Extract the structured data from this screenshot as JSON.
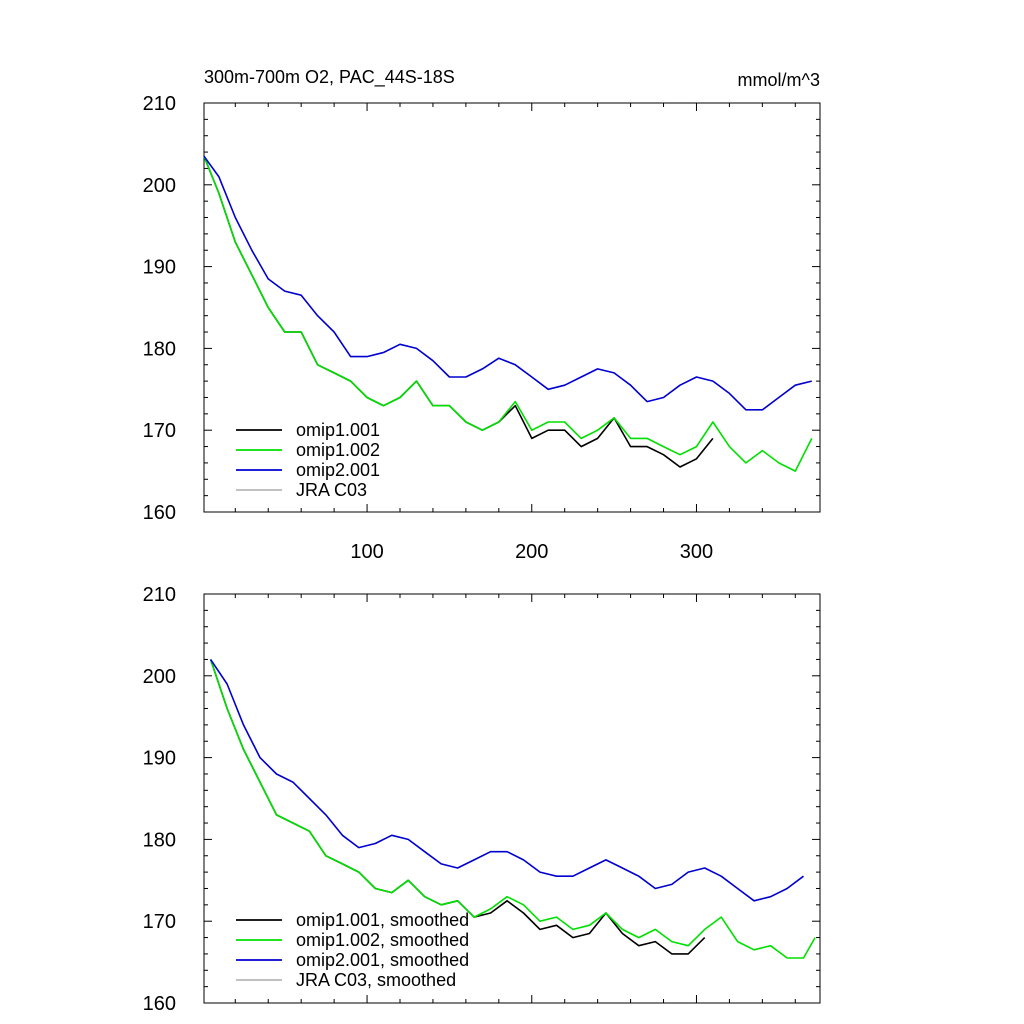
{
  "title_left": "300m-700m O2, PAC_44S-18S",
  "title_right": "mmol/m^3",
  "colors": {
    "omip1_001": "#000000",
    "omip1_002": "#00e000",
    "omip2_001": "#0000d0",
    "jra_c03": "#b8b8b8"
  },
  "chart_data": [
    {
      "type": "line",
      "panel": "raw",
      "title": "300m-700m O2, PAC_44S-18S",
      "units_label": "mmol/m^3",
      "xlim": [
        1,
        375
      ],
      "ylim": [
        160,
        210
      ],
      "xticks": [
        "100",
        "200",
        "300"
      ],
      "xtick_values": [
        100,
        200,
        300
      ],
      "yticks": [
        "160",
        "170",
        "180",
        "190",
        "200",
        "210"
      ],
      "ytick_values": [
        160,
        170,
        180,
        190,
        200,
        210
      ],
      "legend": [
        "omip1.001",
        "omip1.002",
        "omip2.001",
        "JRA C03"
      ],
      "legend_position": "bottom-left",
      "series": [
        {
          "name": "omip1.001",
          "color_key": "omip1_001",
          "x": [
            1,
            10,
            20,
            30,
            40,
            50,
            60,
            70,
            80,
            90,
            100,
            110,
            120,
            130,
            140,
            150,
            160,
            170,
            180,
            190,
            200,
            210,
            220,
            230,
            240,
            250,
            260,
            270,
            280,
            290,
            300,
            310
          ],
          "y": [
            203.5,
            199,
            193,
            189,
            185,
            182,
            182,
            178,
            177,
            176,
            174,
            173,
            174,
            176,
            173,
            173,
            171,
            170,
            171,
            173,
            169,
            170,
            170,
            168,
            169,
            171.5,
            168,
            168,
            167,
            165.5,
            166.5,
            169
          ]
        },
        {
          "name": "omip1.002",
          "color_key": "omip1_002",
          "x": [
            1,
            10,
            20,
            30,
            40,
            50,
            60,
            70,
            80,
            90,
            100,
            110,
            120,
            130,
            140,
            150,
            160,
            170,
            180,
            190,
            200,
            210,
            220,
            230,
            240,
            250,
            260,
            270,
            280,
            290,
            300,
            310,
            320,
            330,
            340,
            350,
            360,
            370
          ],
          "y": [
            203.5,
            199,
            193,
            189,
            185,
            182,
            182,
            178,
            177,
            176,
            174,
            173,
            174,
            176,
            173,
            173,
            171,
            170,
            171,
            173.5,
            170,
            171,
            171,
            169,
            170,
            171.5,
            169,
            169,
            168,
            167,
            168,
            171,
            168,
            166,
            167.5,
            166,
            165,
            169
          ]
        },
        {
          "name": "omip2.001",
          "color_key": "omip2_001",
          "x": [
            1,
            10,
            20,
            30,
            40,
            50,
            60,
            70,
            80,
            90,
            100,
            110,
            120,
            130,
            140,
            150,
            160,
            170,
            180,
            190,
            200,
            210,
            220,
            230,
            240,
            250,
            260,
            270,
            280,
            290,
            300,
            310,
            320,
            330,
            340,
            350,
            360,
            370
          ],
          "y": [
            203.5,
            201,
            196,
            192,
            188.5,
            187,
            186.5,
            184,
            182,
            179,
            179,
            179.5,
            180.5,
            180,
            178.5,
            176.5,
            176.5,
            177.5,
            178.8,
            178,
            176.5,
            175,
            175.5,
            176.5,
            177.5,
            177,
            175.5,
            173.5,
            174,
            175.5,
            176.5,
            176,
            174.5,
            172.5,
            172.5,
            174,
            175.5,
            176
          ]
        }
      ]
    },
    {
      "type": "line",
      "panel": "smoothed",
      "xlim": [
        1,
        375
      ],
      "ylim": [
        160,
        210
      ],
      "yticks": [
        "160",
        "170",
        "180",
        "190",
        "200",
        "210"
      ],
      "ytick_values": [
        160,
        170,
        180,
        190,
        200,
        210
      ],
      "legend": [
        "omip1.001, smoothed",
        "omip1.002, smoothed",
        "omip2.001, smoothed",
        "JRA C03, smoothed"
      ],
      "legend_position": "bottom-left",
      "series": [
        {
          "name": "omip1.001, smoothed",
          "color_key": "omip1_001",
          "x": [
            5,
            15,
            25,
            35,
            45,
            55,
            65,
            75,
            85,
            95,
            105,
            115,
            125,
            135,
            145,
            155,
            165,
            175,
            185,
            195,
            205,
            215,
            225,
            235,
            245,
            255,
            265,
            275,
            285,
            295,
            305
          ],
          "y": [
            202,
            196,
            191,
            187,
            183,
            182,
            181,
            178,
            177,
            176,
            174,
            173.5,
            175,
            173,
            172,
            172.5,
            170.5,
            171,
            172.5,
            171,
            169,
            169.5,
            168,
            168.5,
            171,
            168.5,
            167,
            167.5,
            166,
            166,
            168
          ]
        },
        {
          "name": "omip1.002, smoothed",
          "color_key": "omip1_002",
          "x": [
            5,
            15,
            25,
            35,
            45,
            55,
            65,
            75,
            85,
            95,
            105,
            115,
            125,
            135,
            145,
            155,
            165,
            175,
            185,
            195,
            205,
            215,
            225,
            235,
            245,
            255,
            265,
            275,
            285,
            295,
            305,
            315,
            325,
            335,
            345,
            355,
            365,
            372
          ],
          "y": [
            202,
            196,
            191,
            187,
            183,
            182,
            181,
            178,
            177,
            176,
            174,
            173.5,
            175,
            173,
            172,
            172.5,
            170.5,
            171.5,
            173,
            172,
            170,
            170.5,
            169,
            169.5,
            171,
            169,
            168,
            169,
            167.5,
            167,
            169,
            170.5,
            167.5,
            166.5,
            167,
            165.5,
            165.5,
            168
          ]
        },
        {
          "name": "omip2.001, smoothed",
          "color_key": "omip2_001",
          "x": [
            5,
            15,
            25,
            35,
            45,
            55,
            65,
            75,
            85,
            95,
            105,
            115,
            125,
            135,
            145,
            155,
            165,
            175,
            185,
            195,
            205,
            215,
            225,
            235,
            245,
            255,
            265,
            275,
            285,
            295,
            305,
            315,
            325,
            335,
            345,
            355,
            365
          ],
          "y": [
            202,
            199,
            194,
            190,
            188,
            187,
            185,
            183,
            180.5,
            179,
            179.5,
            180.5,
            180,
            178.5,
            177,
            176.5,
            177.5,
            178.5,
            178.5,
            177.5,
            176,
            175.5,
            175.5,
            176.5,
            177.5,
            176.5,
            175.5,
            174,
            174.5,
            176,
            176.5,
            175.5,
            174,
            172.5,
            173,
            174,
            175.5
          ]
        }
      ]
    }
  ]
}
